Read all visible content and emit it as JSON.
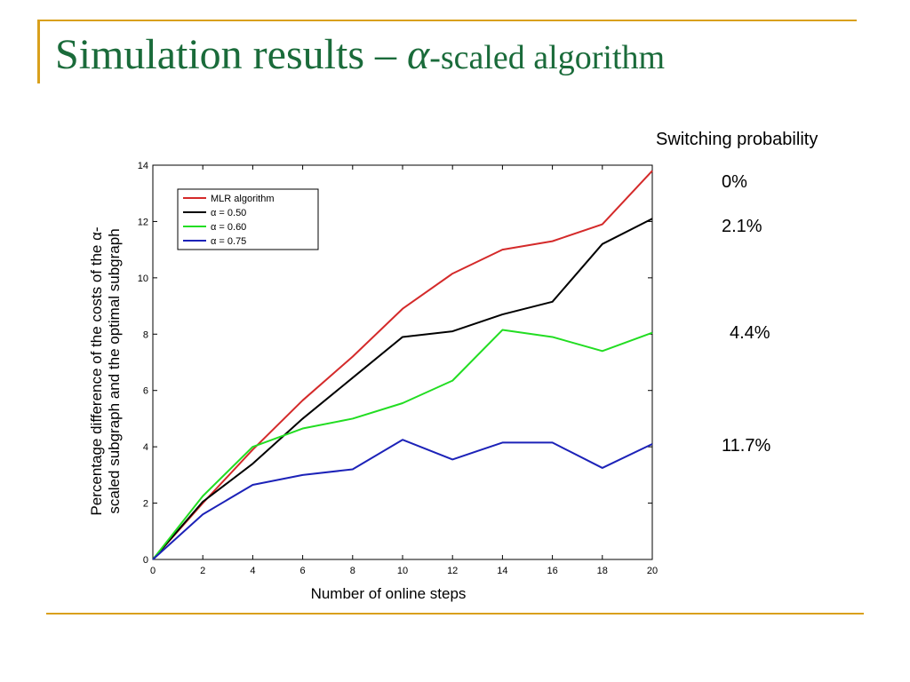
{
  "slide": {
    "title_main": "Simulation results – ",
    "title_alpha": "α",
    "title_suffix": "-scaled algorithm"
  },
  "switching": {
    "heading": "Switching probability",
    "values": [
      "0%",
      "2.1%",
      "4.4%",
      "11.7%"
    ]
  },
  "colors": {
    "accent": "#d9a01c",
    "title": "#1a6b3a"
  },
  "chart_data": {
    "type": "line",
    "title": "",
    "xlabel": "Number of online steps",
    "ylabel_line1": "Percentage difference of the costs of the α-",
    "ylabel_line2": "scaled subgraph and the optimal subgraph",
    "xlim": [
      0,
      20
    ],
    "ylim": [
      0,
      14
    ],
    "x_ticks": [
      0,
      2,
      4,
      6,
      8,
      10,
      12,
      14,
      16,
      18,
      20
    ],
    "y_ticks": [
      0,
      2,
      4,
      6,
      8,
      10,
      12,
      14
    ],
    "grid": false,
    "legend_position": "top-left",
    "x": [
      0,
      2,
      4,
      6,
      8,
      10,
      12,
      14,
      16,
      18,
      20
    ],
    "series": [
      {
        "name": "MLR algorithm",
        "color": "#d42a2a",
        "values": [
          0,
          2.0,
          3.9,
          5.65,
          7.2,
          8.9,
          10.15,
          11.0,
          11.3,
          11.9,
          13.8
        ]
      },
      {
        "name": "α = 0.50",
        "color": "#000000",
        "values": [
          0,
          2.05,
          3.4,
          5.0,
          6.45,
          7.9,
          8.1,
          8.7,
          9.15,
          11.2,
          12.1
        ]
      },
      {
        "name": "α = 0.60",
        "color": "#22dd22",
        "values": [
          0,
          2.25,
          4.0,
          4.65,
          5.0,
          5.55,
          6.35,
          8.15,
          7.9,
          7.4,
          8.05
        ]
      },
      {
        "name": "α = 0.75",
        "color": "#1c22b8",
        "values": [
          0,
          1.6,
          2.65,
          3.0,
          3.2,
          4.25,
          3.55,
          4.15,
          4.15,
          3.25,
          4.1
        ]
      }
    ]
  }
}
